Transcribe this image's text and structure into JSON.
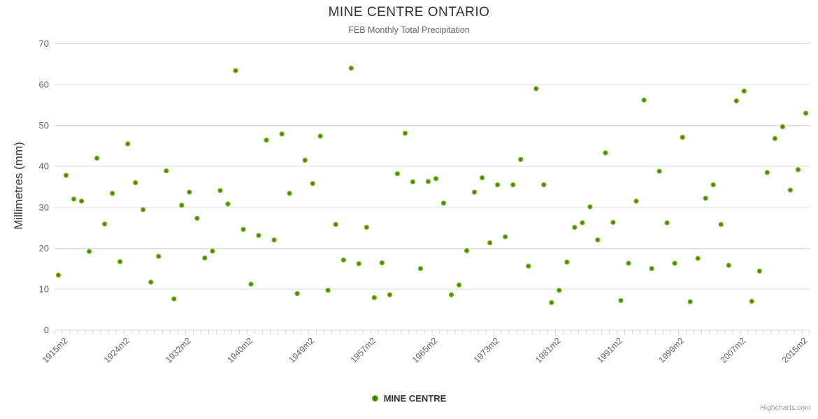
{
  "header": {
    "title": "MINE CENTRE ONTARIO",
    "subtitle": "FEB Monthly Total Precipitation"
  },
  "legend": {
    "label": "MINE CENTRE"
  },
  "credits": {
    "label": "Highcharts.com"
  },
  "colors": {
    "marker_outer": "#7cb414",
    "marker_core": "#33790a",
    "grid": "#dcdcdc",
    "axis": "#ccd6eb",
    "axis_labels": "#606060",
    "title": "#333333",
    "subtitle": "#666666",
    "credits": "#999999"
  },
  "chart_data": {
    "type": "scatter",
    "title": "MINE CENTRE ONTARIO",
    "subtitle": "FEB Monthly Total Precipitation",
    "xlabel": "",
    "ylabel": "Millimetres (mm)",
    "ylim": [
      0,
      70
    ],
    "y_ticks": [
      0,
      10,
      20,
      30,
      40,
      50,
      60,
      70
    ],
    "grid": true,
    "legend_position": "bottom",
    "x_tick_labels": [
      "1915m2",
      "1924m2",
      "1932m2",
      "1940m2",
      "1949m2",
      "1957m2",
      "1965m2",
      "1973m2",
      "1981m2",
      "1991m2",
      "1999m2",
      "2007m2",
      "2015m2"
    ],
    "series": [
      {
        "name": "MINE CENTRE",
        "color": "#7cb414",
        "points": [
          [
            "1914m2",
            13.4
          ],
          [
            "1915m2",
            37.8
          ],
          [
            "1917m2",
            32.0
          ],
          [
            "1918m2",
            31.5
          ],
          [
            "1919m2",
            19.2
          ],
          [
            "1920m2",
            42.0
          ],
          [
            "1921m2",
            25.9
          ],
          [
            "1922m2",
            33.4
          ],
          [
            "1923m2",
            16.7
          ],
          [
            "1924m2",
            45.5
          ],
          [
            "1925m2",
            36.0
          ],
          [
            "1926m2",
            29.4
          ],
          [
            "1927m2",
            11.7
          ],
          [
            "1928m2",
            18.0
          ],
          [
            "1929m2",
            38.9
          ],
          [
            "1930m2",
            7.6
          ],
          [
            "1931m2",
            30.5
          ],
          [
            "1932m2",
            33.7
          ],
          [
            "1933m2",
            27.3
          ],
          [
            "1934m2",
            17.6
          ],
          [
            "1935m2",
            19.3
          ],
          [
            "1936m2",
            34.1
          ],
          [
            "1937m2",
            30.8
          ],
          [
            "1938m2",
            63.4
          ],
          [
            "1939m2",
            24.6
          ],
          [
            "1940m2",
            11.2
          ],
          [
            "1941m2",
            23.1
          ],
          [
            "1942m2",
            46.4
          ],
          [
            "1943m2",
            22.0
          ],
          [
            "1944m2",
            47.9
          ],
          [
            "1946m2",
            33.4
          ],
          [
            "1947m2",
            8.9
          ],
          [
            "1948m2",
            41.5
          ],
          [
            "1949m2",
            35.8
          ],
          [
            "1950m2",
            47.4
          ],
          [
            "1951m2",
            9.7
          ],
          [
            "1952m2",
            25.8
          ],
          [
            "1953m2",
            17.1
          ],
          [
            "1954m2",
            64.0
          ],
          [
            "1955m2",
            16.2
          ],
          [
            "1956m2",
            25.1
          ],
          [
            "1957m2",
            7.9
          ],
          [
            "1958m2",
            16.4
          ],
          [
            "1959m2",
            8.6
          ],
          [
            "1960m2",
            38.2
          ],
          [
            "1961m2",
            48.1
          ],
          [
            "1962m2",
            36.2
          ],
          [
            "1963m2",
            15.0
          ],
          [
            "1964m2",
            36.3
          ],
          [
            "1965m2",
            37.0
          ],
          [
            "1966m2",
            31.0
          ],
          [
            "1967m2",
            8.6
          ],
          [
            "1968m2",
            11.0
          ],
          [
            "1969m2",
            19.4
          ],
          [
            "1970m2",
            33.7
          ],
          [
            "1971m2",
            37.2
          ],
          [
            "1972m2",
            21.3
          ],
          [
            "1973m2",
            35.5
          ],
          [
            "1974m2",
            22.8
          ],
          [
            "1975m2",
            35.5
          ],
          [
            "1976m2",
            41.7
          ],
          [
            "1977m2",
            15.6
          ],
          [
            "1978m2",
            59.0
          ],
          [
            "1979m2",
            35.5
          ],
          [
            "1980m2",
            6.7
          ],
          [
            "1981m2",
            9.7
          ],
          [
            "1984m2",
            16.6
          ],
          [
            "1985m2",
            25.1
          ],
          [
            "1986m2",
            26.2
          ],
          [
            "1987m2",
            30.1
          ],
          [
            "1988m2",
            22.0
          ],
          [
            "1989m2",
            43.3
          ],
          [
            "1990m2",
            26.3
          ],
          [
            "1991m2",
            7.2
          ],
          [
            "1992m2",
            16.3
          ],
          [
            "1993m2",
            31.5
          ],
          [
            "1994m2",
            56.2
          ],
          [
            "1995m2",
            15.0
          ],
          [
            "1996m2",
            38.8
          ],
          [
            "1997m2",
            26.2
          ],
          [
            "1998m2",
            16.3
          ],
          [
            "1999m2",
            47.1
          ],
          [
            "2000m2",
            6.9
          ],
          [
            "2001m2",
            17.5
          ],
          [
            "2002m2",
            32.2
          ],
          [
            "2003m2",
            35.5
          ],
          [
            "2004m2",
            25.8
          ],
          [
            "2005m2",
            15.8
          ],
          [
            "2006m2",
            56.0
          ],
          [
            "2007m2",
            58.4
          ],
          [
            "2008m2",
            7.0
          ],
          [
            "2009m2",
            14.4
          ],
          [
            "2010m2",
            38.5
          ],
          [
            "2011m2",
            46.8
          ],
          [
            "2012m2",
            49.7
          ],
          [
            "2013m2",
            34.2
          ],
          [
            "2014m2",
            39.2
          ],
          [
            "2015m2",
            53.0
          ]
        ]
      }
    ]
  }
}
